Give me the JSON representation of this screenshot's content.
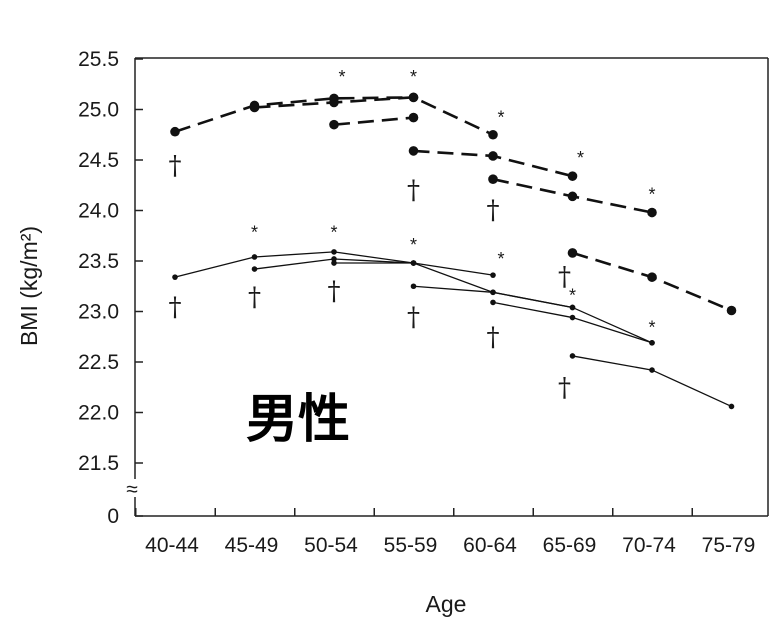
{
  "chart_data": {
    "type": "line",
    "categories": [
      "40-44",
      "45-49",
      "50-54",
      "55-59",
      "60-64",
      "65-69",
      "70-74",
      "75-79"
    ],
    "xlabel": "Age",
    "ylabel": "BMI (kg/m²)",
    "ylim": [
      21.5,
      25.5
    ],
    "y_ticks": [
      "25.5",
      "25.0",
      "24.5",
      "24.0",
      "23.5",
      "23.0",
      "22.5",
      "22.0",
      "21.5"
    ],
    "y_zero_label": "0",
    "axis_break_symbol": "≈",
    "grid": false,
    "overlay_label": "男性",
    "dagger_symbol": "†",
    "star_symbol": "*",
    "groups": [
      {
        "style": "dashed-large",
        "segments": [
          {
            "x": [
              0,
              1,
              2,
              3
            ],
            "y": [
              24.78,
              25.04,
              25.11,
              25.12
            ]
          },
          {
            "x": [
              1,
              2,
              3,
              4
            ],
            "y": [
              25.02,
              25.07,
              25.12,
              24.75
            ]
          },
          {
            "x": [
              2,
              3
            ],
            "y": [
              24.85,
              24.92
            ]
          },
          {
            "x": [
              3,
              4,
              5
            ],
            "y": [
              24.59,
              24.54,
              24.34
            ]
          },
          {
            "x": [
              4,
              5,
              6
            ],
            "y": [
              24.31,
              24.14,
              23.98
            ]
          },
          {
            "x": [
              5,
              6,
              7
            ],
            "y": [
              23.58,
              23.34,
              23.01
            ]
          }
        ]
      },
      {
        "style": "solid-small",
        "segments": [
          {
            "x": [
              0,
              1,
              2,
              3
            ],
            "y": [
              23.34,
              23.54,
              23.59,
              23.48
            ]
          },
          {
            "x": [
              1,
              2,
              3,
              4
            ],
            "y": [
              23.42,
              23.52,
              23.48,
              23.36
            ]
          },
          {
            "x": [
              2,
              3,
              4,
              5
            ],
            "y": [
              23.48,
              23.48,
              23.19,
              23.04
            ]
          },
          {
            "x": [
              3,
              4,
              5,
              6
            ],
            "y": [
              23.25,
              23.19,
              23.04,
              22.69
            ]
          },
          {
            "x": [
              4,
              5,
              6
            ],
            "y": [
              23.09,
              22.94,
              22.69
            ]
          },
          {
            "x": [
              5,
              6,
              7
            ],
            "y": [
              22.56,
              22.42,
              22.06
            ]
          }
        ]
      }
    ],
    "star_marks": [
      {
        "x": 2.1,
        "y": 25.32
      },
      {
        "x": 3.0,
        "y": 25.32
      },
      {
        "x": 4.1,
        "y": 24.92
      },
      {
        "x": 5.1,
        "y": 24.52
      },
      {
        "x": 6.0,
        "y": 24.16
      },
      {
        "x": 1.0,
        "y": 23.78
      },
      {
        "x": 2.0,
        "y": 23.78
      },
      {
        "x": 3.0,
        "y": 23.66
      },
      {
        "x": 4.1,
        "y": 23.52
      },
      {
        "x": 5.0,
        "y": 23.16
      },
      {
        "x": 6.0,
        "y": 22.84
      }
    ],
    "dagger_marks": [
      {
        "x": 0.0,
        "y": 24.48
      },
      {
        "x": 3.0,
        "y": 24.24
      },
      {
        "x": 4.0,
        "y": 24.04
      },
      {
        "x": 4.9,
        "y": 23.38
      },
      {
        "x": 0.0,
        "y": 23.08
      },
      {
        "x": 1.0,
        "y": 23.18
      },
      {
        "x": 2.0,
        "y": 23.24
      },
      {
        "x": 3.0,
        "y": 22.98
      },
      {
        "x": 4.0,
        "y": 22.78
      },
      {
        "x": 4.9,
        "y": 22.28
      }
    ]
  }
}
